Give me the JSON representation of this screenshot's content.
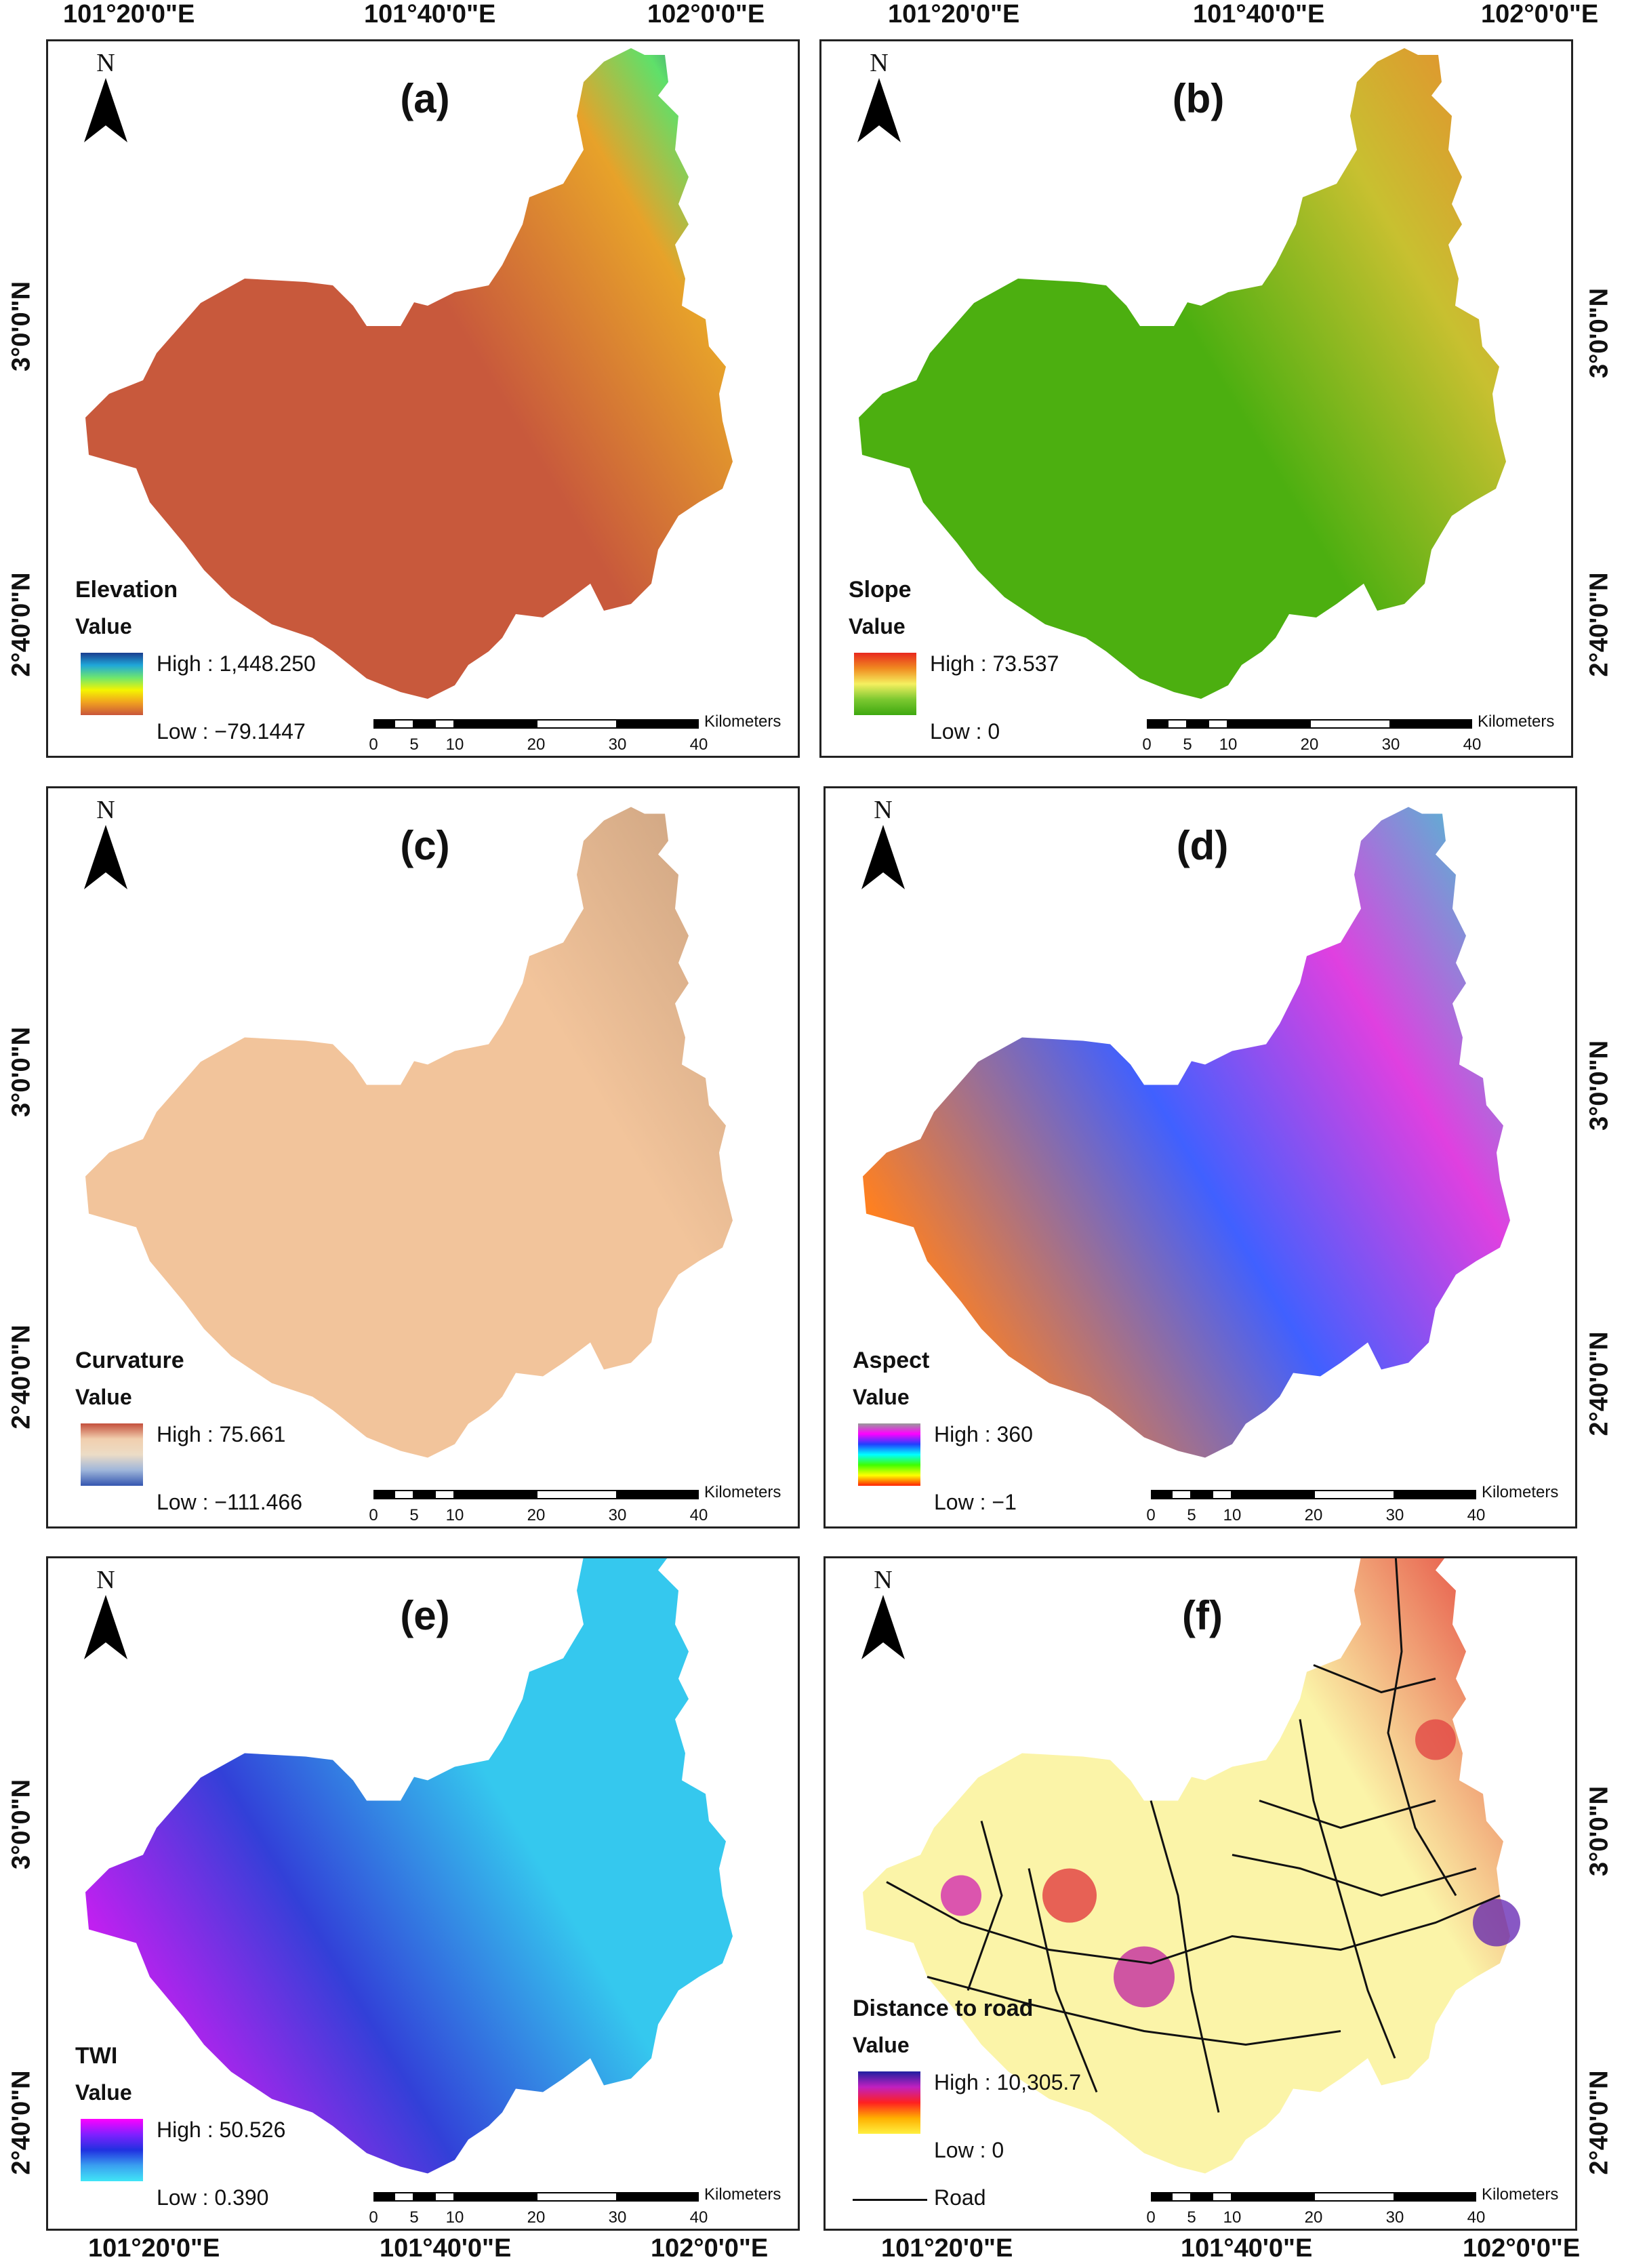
{
  "top_lon_labels": [
    "101°20'0\"E",
    "101°40'0\"E",
    "102°0'0\"E",
    "101°20'0\"E",
    "101°40'0\"E",
    "102°0'0\"E"
  ],
  "bottom_lon_labels": [
    "101°20'0\"E",
    "101°40'0\"E",
    "102°0'0\"E",
    "101°20'0\"E",
    "101°40'0\"E",
    "102°0'0\"E"
  ],
  "lat_labels_left": [
    "3°0'0\"N",
    "2°40'0\"N",
    "3°0'0\"N",
    "2°40'0\"N",
    "3°0'0\"N",
    "2°40'0\"N"
  ],
  "lat_labels_right": [
    "3°0'0\"N",
    "2°40'0\"N",
    "3°0'0\"N",
    "2°40'0\"N",
    "3°0'0\"N",
    "2°40'0\"N"
  ],
  "north_symbol": "N",
  "scale": {
    "unit": "Kilometers",
    "ticks": [
      "0",
      "5",
      "10",
      "20",
      "30",
      "40"
    ]
  },
  "panels": [
    {
      "label": "(a)",
      "title": "Elevation",
      "value_label": "Value",
      "high": "High : 1,448.250",
      "low": "Low : −79.1447",
      "ramp": [
        "#1a3d8f",
        "#1fa7d9",
        "#6ee66e",
        "#f5f500",
        "#f0a020",
        "#c9553a"
      ],
      "fill": "#c8593c",
      "accent": "#e7a22a"
    },
    {
      "label": "(b)",
      "title": "Slope",
      "value_label": "Value",
      "high": "High : 73.537",
      "low": "Low : 0",
      "ramp": [
        "#e8281e",
        "#f08a20",
        "#f5f060",
        "#7cc830",
        "#3ea810"
      ],
      "fill": "#4caf10",
      "accent": "#e5a33a"
    },
    {
      "label": "(c)",
      "title": "Curvature",
      "value_label": "Value",
      "high": "High : 75.661",
      "low": "Low : −111.466",
      "ramp": [
        "#c44f3c",
        "#f1cfae",
        "#ecdcc6",
        "#9fb6da",
        "#3456b0"
      ],
      "fill": "#f2c49b",
      "accent": "#caa17f"
    },
    {
      "label": "(d)",
      "title": "Aspect",
      "value_label": "Value",
      "high": "High : 360",
      "low": "Low : −1",
      "ramp": [
        "#9a9a9a",
        "#ff00ff",
        "#2040ff",
        "#00ffff",
        "#40ff00",
        "#ffff00",
        "#ff2000"
      ],
      "fill": "#b44cd2",
      "accent": "#37d0d0"
    },
    {
      "label": "(e)",
      "title": "TWI",
      "value_label": "Value",
      "high": "High : 50.526",
      "low": "Low : 0.390",
      "ramp": [
        "#ff00ff",
        "#8020ff",
        "#2030e0",
        "#3aa0f0",
        "#40e6f6"
      ],
      "fill": "#3240d8",
      "accent": "#35c8ee"
    },
    {
      "label": "(f)",
      "title": "Distance to road",
      "value_label": "Value",
      "high": "High : 10,305.7",
      "low": "Low : 0",
      "ramp": [
        "#2020a0",
        "#c020c0",
        "#ff2020",
        "#ffb000",
        "#fff040"
      ],
      "fill": "#fbf4a8",
      "accent": "#e23232",
      "road_label": "Road"
    }
  ]
}
